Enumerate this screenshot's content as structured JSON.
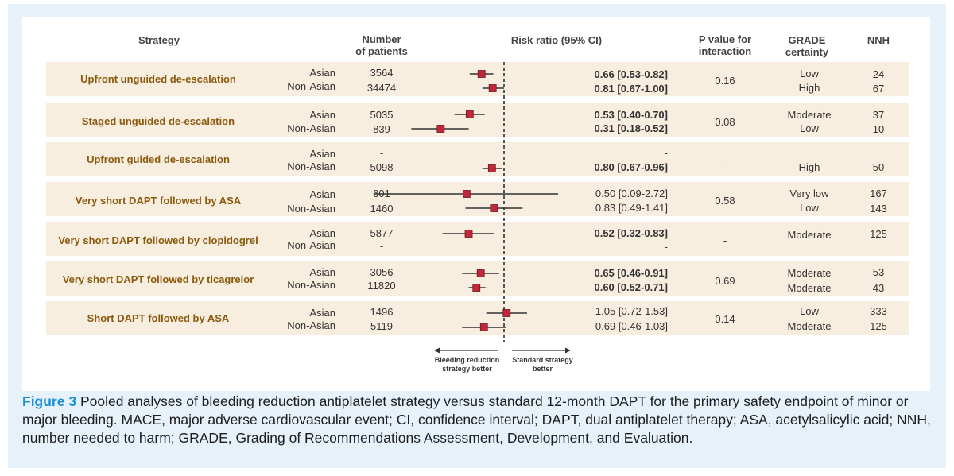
{
  "headers": {
    "strategy": "Strategy",
    "patients_line1": "Number",
    "patients_line2": "of patients",
    "risk_ratio": "Risk ratio (95% CI)",
    "p_line1": "P value for",
    "p_line2": "interaction",
    "grade_line1": "GRADE",
    "grade_line2": "certainty",
    "nnh": "NNH"
  },
  "chart_data": {
    "type": "forest",
    "reference_line": 1.0,
    "x_scale": "log",
    "direction_labels": {
      "left_line1": "Bleeding reduction",
      "left_line2": "strategy better",
      "right_line1": "Standard strategy",
      "right_line2": "better"
    },
    "rows": [
      {
        "strategy": "Upfront unguided de-escalation",
        "p_interaction": "0.16",
        "entries": [
          {
            "population": "Asian",
            "n": "3564",
            "rr": 0.66,
            "lo": 0.53,
            "hi": 0.82,
            "label": "0.66 [0.53-0.82]",
            "bold": true,
            "grade": "Low",
            "nnh": "24"
          },
          {
            "population": "Non-Asian",
            "n": "34474",
            "rr": 0.81,
            "lo": 0.67,
            "hi": 1.0,
            "label": "0.81 [0.67-1.00]",
            "bold": true,
            "grade": "High",
            "nnh": "67"
          }
        ]
      },
      {
        "strategy": "Staged unguided de-escalation",
        "p_interaction": "0.08",
        "entries": [
          {
            "population": "Asian",
            "n": "5035",
            "rr": 0.53,
            "lo": 0.4,
            "hi": 0.7,
            "label": "0.53 [0.40-0.70]",
            "bold": true,
            "grade": "Moderate",
            "nnh": "37"
          },
          {
            "population": "Non-Asian",
            "n": "839",
            "rr": 0.31,
            "lo": 0.18,
            "hi": 0.52,
            "label": "0.31 [0.18-0.52]",
            "bold": true,
            "grade": "Low",
            "nnh": "10"
          }
        ]
      },
      {
        "strategy": "Upfront guided de-escalation",
        "p_interaction": "-",
        "entries": [
          {
            "population": "Asian",
            "n": "-",
            "rr": null,
            "lo": null,
            "hi": null,
            "label": "-",
            "bold": false,
            "grade": "",
            "nnh": ""
          },
          {
            "population": "Non-Asian",
            "n": "5098",
            "rr": 0.8,
            "lo": 0.67,
            "hi": 0.96,
            "label": "0.80 [0.67-0.96]",
            "bold": true,
            "grade": "High",
            "nnh": "50"
          }
        ]
      },
      {
        "strategy": "Very short DAPT followed by ASA",
        "p_interaction": "0.58",
        "entries": [
          {
            "population": "Asian",
            "n": "601",
            "rr": 0.5,
            "lo": 0.09,
            "hi": 2.72,
            "label": "0.50 [0.09-2.72]",
            "bold": false,
            "grade": "Very low",
            "nnh": "167"
          },
          {
            "population": "Non-Asian",
            "n": "1460",
            "rr": 0.83,
            "lo": 0.49,
            "hi": 1.41,
            "label": "0.83 [0.49-1.41]",
            "bold": false,
            "grade": "Low",
            "nnh": "143"
          }
        ]
      },
      {
        "strategy": "Very short DAPT followed by clopidogrel",
        "p_interaction": "-",
        "entries": [
          {
            "population": "Asian",
            "n": "5877",
            "rr": 0.52,
            "lo": 0.32,
            "hi": 0.83,
            "label": "0.52 [0.32-0.83]",
            "bold": true,
            "grade": "Moderate",
            "nnh": "125"
          },
          {
            "population": "Non-Asian",
            "n": "-",
            "rr": null,
            "lo": null,
            "hi": null,
            "label": "-",
            "bold": false,
            "grade": "",
            "nnh": ""
          }
        ]
      },
      {
        "strategy": "Very short DAPT followed by ticagrelor",
        "p_interaction": "0.69",
        "entries": [
          {
            "population": "Asian",
            "n": "3056",
            "rr": 0.65,
            "lo": 0.46,
            "hi": 0.91,
            "label": "0.65 [0.46-0.91]",
            "bold": true,
            "grade": "Moderate",
            "nnh": "53"
          },
          {
            "population": "Non-Asian",
            "n": "11820",
            "rr": 0.6,
            "lo": 0.52,
            "hi": 0.71,
            "label": "0.60 [0.52-0.71]",
            "bold": true,
            "grade": "Moderate",
            "nnh": "43"
          }
        ]
      },
      {
        "strategy": "Short DAPT followed by ASA",
        "p_interaction": "0.14",
        "entries": [
          {
            "population": "Asian",
            "n": "1496",
            "rr": 1.05,
            "lo": 0.72,
            "hi": 1.53,
            "label": "1.05 [0.72-1.53]",
            "bold": false,
            "grade": "Low",
            "nnh": "333"
          },
          {
            "population": "Non-Asian",
            "n": "5119",
            "rr": 0.69,
            "lo": 0.46,
            "hi": 1.03,
            "label": "0.69 [0.46-1.03]",
            "bold": false,
            "grade": "Moderate",
            "nnh": "125"
          }
        ]
      }
    ]
  },
  "caption": {
    "label": "Figure 3",
    "text": " Pooled analyses of bleeding reduction antiplatelet strategy versus standard 12-month DAPT for the primary safety endpoint of minor or major bleeding. MACE, major adverse cardiovascular event; CI, confidence interval; DAPT, dual antiplatelet therapy; ASA, acetylsalicylic acid; NNH, number needed to harm; GRADE, Grading of Recommendations Assessment, Development, and Evaluation."
  },
  "colors": {
    "marker": "#c0283a",
    "shaded_row": "#f8eedf",
    "strategy_text": "#8a5a0e",
    "caption_label": "#1a8fd6",
    "frame": "#e6f1f9"
  }
}
